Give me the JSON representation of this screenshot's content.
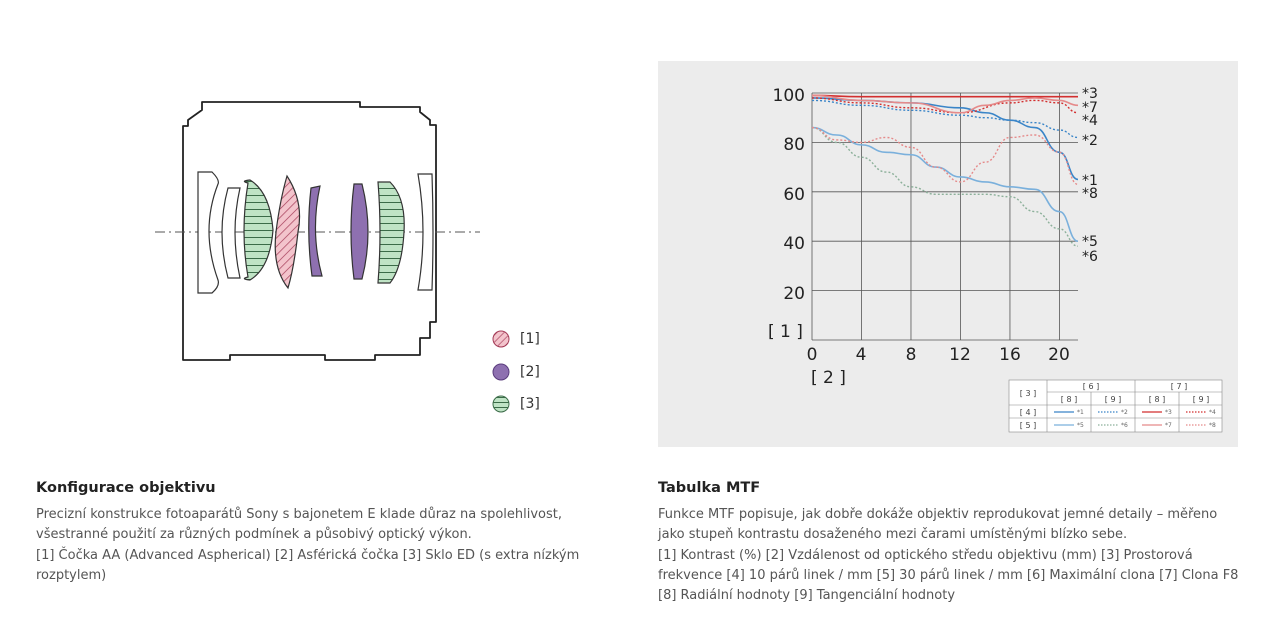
{
  "lens": {
    "legend": [
      {
        "label": "[1]",
        "kind": "aa",
        "color": "#f3c4cc",
        "stroke": "#a33a56"
      },
      {
        "label": "[2]",
        "kind": "aspherical",
        "color": "#8e70b0",
        "stroke": "#5a3c7d"
      },
      {
        "label": "[3]",
        "kind": "ed",
        "color": "#bfe3c5",
        "stroke": "#3b6b48"
      }
    ]
  },
  "mtf": {
    "axis": {
      "y_ticks": [
        "100",
        "80",
        "60",
        "40",
        "20"
      ],
      "x_ticks": [
        "0",
        "4",
        "8",
        "12",
        "16",
        "20"
      ],
      "y_label": "[ 1 ]",
      "x_label": "[ 2 ]"
    },
    "curve_labels": [
      "*3",
      "*7",
      "*4",
      "*2",
      "*1",
      "*8",
      "*5",
      "*6"
    ],
    "legend_table": {
      "row_header_top": "[ 3 ]",
      "col_groups": [
        "[ 6 ]",
        "[ 7 ]"
      ],
      "sub_cols": [
        "[ 8 ]",
        "[ 9 ]",
        "[ 8 ]",
        "[ 9 ]"
      ],
      "row_labels": [
        "[ 4 ]",
        "[ 5 ]"
      ],
      "row4_marks": [
        "*1",
        "*2",
        "*3",
        "*4"
      ],
      "row5_marks": [
        "*5",
        "*6",
        "*7",
        "*8"
      ]
    }
  },
  "chart_data": {
    "type": "line",
    "xlabel": "[ 2 ]",
    "ylabel": "[ 1 ]",
    "xlim": [
      0,
      21.5
    ],
    "ylim": [
      0,
      100
    ],
    "x_ticks": [
      0,
      4,
      8,
      12,
      16,
      20
    ],
    "y_ticks": [
      20,
      40,
      60,
      80,
      100
    ],
    "grid": true,
    "legend_placement": "bottom-right",
    "series": [
      {
        "name": "*1",
        "color": "#3a85c8",
        "style": "solid",
        "x": [
          0,
          4,
          8,
          12,
          14,
          16,
          18,
          20,
          21.5
        ],
        "y": [
          98,
          97,
          96,
          94,
          92,
          89,
          86,
          76,
          65
        ]
      },
      {
        "name": "*2",
        "color": "#3a85c8",
        "style": "dotted",
        "x": [
          0,
          4,
          8,
          12,
          14,
          16,
          18,
          20,
          21.5
        ],
        "y": [
          97,
          95,
          93,
          91,
          90,
          89,
          88,
          85,
          82
        ]
      },
      {
        "name": "*3",
        "color": "#d22f2f",
        "style": "solid",
        "x": [
          0,
          4,
          8,
          12,
          16,
          20,
          21.5
        ],
        "y": [
          99,
          98.5,
          98.5,
          98.5,
          98.5,
          98.5,
          98.5
        ]
      },
      {
        "name": "*4",
        "color": "#d22f2f",
        "style": "dotted",
        "x": [
          0,
          4,
          8,
          12,
          16,
          18,
          20,
          21.5
        ],
        "y": [
          98,
          96,
          94,
          92,
          96,
          97,
          96,
          92
        ]
      },
      {
        "name": "*5",
        "color": "#7ab0dc",
        "style": "solid",
        "x": [
          0,
          2,
          4,
          6,
          8,
          10,
          12,
          14,
          16,
          18,
          20,
          21.5
        ],
        "y": [
          86,
          83,
          79,
          76,
          75,
          70,
          66,
          64,
          62,
          61,
          52,
          40
        ]
      },
      {
        "name": "*6",
        "color": "#8cb09a",
        "style": "dotted",
        "x": [
          0,
          2,
          4,
          6,
          8,
          10,
          12,
          14,
          16,
          18,
          20,
          21.5
        ],
        "y": [
          86,
          80,
          74,
          68,
          62,
          59,
          59,
          59,
          58,
          52,
          45,
          38
        ]
      },
      {
        "name": "*7",
        "color": "#e58a8a",
        "style": "solid",
        "x": [
          0,
          4,
          8,
          12,
          14,
          16,
          18,
          20,
          21.5
        ],
        "y": [
          99,
          97,
          96,
          92,
          95,
          97,
          98,
          97,
          95
        ]
      },
      {
        "name": "*8",
        "color": "#e58a8a",
        "style": "dotted",
        "x": [
          0,
          2,
          4,
          6,
          8,
          10,
          12,
          14,
          16,
          18,
          20,
          21.5
        ],
        "y": [
          86,
          81,
          80,
          82,
          78,
          70,
          64,
          72,
          82,
          83,
          76,
          63
        ]
      }
    ]
  },
  "sections": {
    "left": {
      "title": "Konfigurace objektivu",
      "lines": [
        "Precizní konstrukce fotoaparátů Sony s bajonetem E klade důraz na spolehlivost,",
        "všestranné použití za různých podmínek a působivý optický výkon.",
        "[1] Čočka AA (Advanced Aspherical) [2] Asférická čočka [3] Sklo ED (s extra nízkým",
        "rozptylem)"
      ]
    },
    "right": {
      "title": "Tabulka MTF",
      "lines": [
        "Funkce MTF popisuje, jak dobře dokáže objektiv reprodukovat jemné detaily – měřeno",
        "jako stupeň kontrastu dosaženého mezi čarami umístěnými blízko sebe.",
        "[1] Kontrast (%) [2] Vzdálenost od optického středu objektivu (mm) [3] Prostorová",
        "frekvence [4] 10 párů linek / mm [5] 30 párů linek / mm [6] Maximální clona [7] Clona F8",
        "[8] Radiální hodnoty [9] Tangenciální hodnoty"
      ]
    }
  }
}
